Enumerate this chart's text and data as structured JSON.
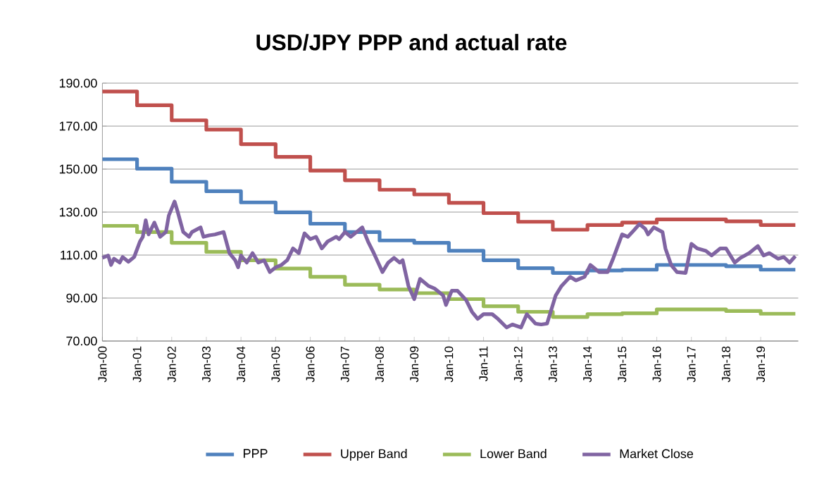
{
  "chart_data": {
    "type": "line",
    "title": "USD/JPY PPP and actual rate",
    "xlim": [
      "2000-01",
      "2020-02"
    ],
    "xticks": [
      {
        "value": "2000-01",
        "label": "Jan-00"
      },
      {
        "value": "2001-01",
        "label": "Jan-01"
      },
      {
        "value": "2002-01",
        "label": "Jan-02"
      },
      {
        "value": "2003-01",
        "label": "Jan-03"
      },
      {
        "value": "2004-01",
        "label": "Jan-04"
      },
      {
        "value": "2005-01",
        "label": "Jan-05"
      },
      {
        "value": "2006-01",
        "label": "Jan-06"
      },
      {
        "value": "2007-01",
        "label": "Jan-07"
      },
      {
        "value": "2008-01",
        "label": "Jan-08"
      },
      {
        "value": "2009-01",
        "label": "Jan-09"
      },
      {
        "value": "2010-01",
        "label": "Jan-10"
      },
      {
        "value": "2011-01",
        "label": "Jan-11"
      },
      {
        "value": "2012-01",
        "label": "Jan-12"
      },
      {
        "value": "2013-01",
        "label": "Jan-13"
      },
      {
        "value": "2014-01",
        "label": "Jan-14"
      },
      {
        "value": "2015-01",
        "label": "Jan-15"
      },
      {
        "value": "2016-01",
        "label": "Jan-16"
      },
      {
        "value": "2017-01",
        "label": "Jan-17"
      },
      {
        "value": "2018-01",
        "label": "Jan-18"
      },
      {
        "value": "2019-01",
        "label": "Jan-19"
      }
    ],
    "ylim": [
      70,
      190
    ],
    "yticks": [
      {
        "value": 70,
        "label": "70.00"
      },
      {
        "value": 90,
        "label": "90.00"
      },
      {
        "value": 110,
        "label": "110.00"
      },
      {
        "value": 130,
        "label": "130.00"
      },
      {
        "value": 150,
        "label": "150.00"
      },
      {
        "value": 170,
        "label": "170.00"
      },
      {
        "value": 190,
        "label": "190.00"
      }
    ],
    "grid": "y",
    "legend": "bottom",
    "series": [
      {
        "name": "PPP",
        "type": "step",
        "color": "#4f81bd",
        "x": [
          "2000-01",
          "2001-01",
          "2002-01",
          "2003-01",
          "2004-01",
          "2005-01",
          "2006-01",
          "2007-01",
          "2008-01",
          "2009-01",
          "2010-01",
          "2011-01",
          "2012-01",
          "2013-01",
          "2014-01",
          "2015-01",
          "2016-01",
          "2017-01",
          "2018-01",
          "2019-01",
          "2020-01"
        ],
        "values": [
          154.6,
          150.2,
          144.1,
          139.7,
          134.5,
          129.9,
          124.6,
          120.7,
          116.8,
          115.7,
          112.0,
          107.6,
          103.9,
          101.7,
          102.8,
          103.2,
          105.4,
          105.4,
          104.8,
          103.2,
          103.2
        ]
      },
      {
        "name": "Upper Band",
        "type": "step",
        "color": "#c0504d",
        "x": [
          "2000-01",
          "2001-01",
          "2002-01",
          "2003-01",
          "2004-01",
          "2005-01",
          "2006-01",
          "2007-01",
          "2008-01",
          "2009-01",
          "2010-01",
          "2011-01",
          "2012-01",
          "2013-01",
          "2014-01",
          "2015-01",
          "2016-01",
          "2017-01",
          "2018-01",
          "2019-01",
          "2020-01"
        ],
        "values": [
          186.1,
          179.7,
          172.7,
          168.4,
          161.6,
          155.7,
          149.3,
          144.8,
          140.4,
          138.2,
          134.3,
          129.5,
          125.5,
          121.8,
          124.0,
          125.1,
          126.6,
          126.6,
          125.7,
          124.0,
          124.0
        ]
      },
      {
        "name": "Lower Band",
        "type": "step",
        "color": "#9bbb59",
        "x": [
          "2000-01",
          "2001-01",
          "2002-01",
          "2003-01",
          "2004-01",
          "2005-01",
          "2006-01",
          "2007-01",
          "2008-01",
          "2009-01",
          "2010-01",
          "2011-01",
          "2012-01",
          "2013-01",
          "2014-01",
          "2015-01",
          "2016-01",
          "2017-01",
          "2018-01",
          "2019-01",
          "2020-01"
        ],
        "values": [
          123.6,
          120.7,
          115.7,
          111.5,
          107.6,
          103.7,
          99.9,
          96.2,
          94.0,
          92.3,
          89.5,
          86.2,
          83.6,
          81.2,
          82.5,
          82.9,
          84.7,
          84.7,
          84.0,
          82.7,
          82.7
        ]
      },
      {
        "name": "Market Close",
        "color": "#8064a2",
        "x": [
          "2000-01",
          "2000-03",
          "2000-04",
          "2000-05",
          "2000-07",
          "2000-08",
          "2000-10",
          "2000-12",
          "2001-02",
          "2001-03",
          "2001-04",
          "2001-05",
          "2001-07",
          "2001-09",
          "2001-11",
          "2001-12",
          "2002-02",
          "2002-03",
          "2002-05",
          "2002-07",
          "2002-08",
          "2002-11",
          "2002-12",
          "2003-02",
          "2003-04",
          "2003-07",
          "2003-09",
          "2003-11",
          "2003-12",
          "2004-01",
          "2004-03",
          "2004-05",
          "2004-07",
          "2004-09",
          "2004-11",
          "2005-01",
          "2005-03",
          "2005-05",
          "2005-07",
          "2005-09",
          "2005-11",
          "2006-01",
          "2006-03",
          "2006-05",
          "2006-07",
          "2006-10",
          "2006-11",
          "2007-01",
          "2007-03",
          "2007-04",
          "2007-07",
          "2007-09",
          "2007-11",
          "2008-02",
          "2008-04",
          "2008-06",
          "2008-08",
          "2008-09",
          "2008-11",
          "2009-01",
          "2009-03",
          "2009-06",
          "2009-08",
          "2009-11",
          "2009-12",
          "2010-02",
          "2010-04",
          "2010-07",
          "2010-09",
          "2010-11",
          "2011-01",
          "2011-04",
          "2011-06",
          "2011-09",
          "2011-11",
          "2012-02",
          "2012-04",
          "2012-07",
          "2012-09",
          "2012-11",
          "2013-02",
          "2013-04",
          "2013-07",
          "2013-09",
          "2013-12",
          "2014-02",
          "2014-05",
          "2014-08",
          "2014-10",
          "2015-01",
          "2015-03",
          "2015-05",
          "2015-07",
          "2015-09",
          "2015-10",
          "2015-12",
          "2016-03",
          "2016-04",
          "2016-06",
          "2016-08",
          "2016-11",
          "2017-01",
          "2017-03",
          "2017-06",
          "2017-08",
          "2017-11",
          "2018-01",
          "2018-04",
          "2018-06",
          "2018-09",
          "2018-12",
          "2019-02",
          "2019-04",
          "2019-07",
          "2019-09",
          "2019-11",
          "2020-01"
        ],
        "values": [
          108.7,
          109.8,
          105.4,
          108.3,
          106.5,
          109.1,
          106.9,
          109.1,
          116.3,
          118.5,
          126.2,
          119.6,
          125.1,
          118.5,
          120.7,
          128.4,
          134.9,
          130.5,
          120.7,
          118.5,
          120.7,
          122.9,
          118.5,
          119.2,
          119.6,
          120.7,
          110.9,
          107.6,
          104.3,
          109.8,
          106.5,
          110.9,
          106.5,
          107.6,
          102.1,
          104.3,
          105.4,
          107.6,
          113.1,
          110.9,
          120.1,
          117.4,
          118.5,
          113.1,
          116.3,
          118.5,
          117.4,
          120.7,
          118.5,
          119.6,
          122.9,
          116.3,
          110.9,
          102.1,
          106.5,
          108.7,
          106.5,
          107.6,
          95.6,
          89.5,
          98.9,
          95.6,
          94.5,
          91.2,
          86.8,
          93.4,
          93.4,
          89.0,
          83.6,
          80.3,
          82.5,
          82.5,
          80.3,
          76.3,
          77.7,
          76.3,
          82.5,
          78.1,
          77.7,
          78.1,
          91.2,
          95.6,
          99.9,
          98.2,
          99.9,
          105.4,
          102.1,
          102.1,
          108.7,
          119.6,
          118.5,
          121.4,
          124.4,
          122.2,
          119.6,
          122.9,
          120.7,
          113.1,
          105.4,
          102.1,
          101.7,
          115.2,
          113.1,
          112.0,
          109.8,
          113.1,
          113.1,
          106.5,
          108.7,
          110.9,
          114.2,
          109.8,
          110.9,
          108.3,
          109.1,
          106.5,
          109.5
        ]
      }
    ]
  }
}
